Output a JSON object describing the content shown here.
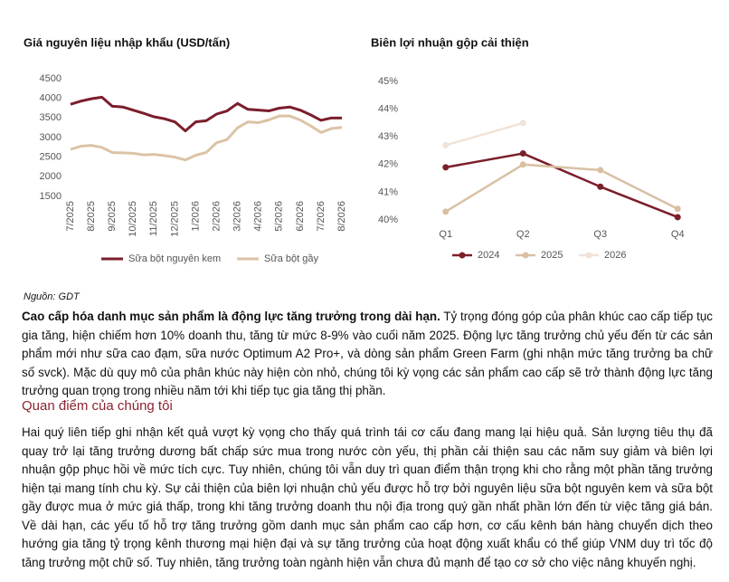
{
  "chart_data": [
    {
      "type": "line",
      "title": "Giá nguyên liệu nhập khẩu (USD/tấn)",
      "categories": [
        "7/2025",
        null,
        "8/2025",
        null,
        "9/2025",
        null,
        "10/2025",
        null,
        "11/2025",
        null,
        "12/2025",
        null,
        "1/2026",
        null,
        "2/2026",
        null,
        "3/2026",
        null,
        "4/2026",
        null,
        "5/2026",
        null,
        "6/2026",
        null,
        "7/2026",
        null,
        "8/2026"
      ],
      "series": [
        {
          "name": "Sữa bột nguyên kem",
          "color": "#7b1e2b",
          "values": [
            3850,
            3930,
            3990,
            4030,
            3800,
            3780,
            3700,
            3620,
            3530,
            3480,
            3400,
            3170,
            3400,
            3430,
            3600,
            3680,
            3870,
            3720,
            3700,
            3680,
            3750,
            3780,
            3700,
            3580,
            3440,
            3500,
            3500
          ]
        },
        {
          "name": "Sữa bột gầy",
          "color": "#dcc3a6",
          "values": [
            2700,
            2780,
            2800,
            2750,
            2620,
            2610,
            2600,
            2560,
            2570,
            2540,
            2500,
            2430,
            2550,
            2620,
            2870,
            2950,
            3250,
            3400,
            3380,
            3450,
            3550,
            3550,
            3450,
            3300,
            3130,
            3230,
            3260
          ]
        }
      ],
      "ylim": [
        1500,
        4500
      ],
      "yticks": [
        1500,
        2000,
        2500,
        3000,
        3500,
        4000,
        4500
      ],
      "grid": false,
      "markers": false
    },
    {
      "type": "line",
      "title": "Biên lợi nhuận gộp cải thiện",
      "categories": [
        "Q1",
        "Q2",
        "Q3",
        "Q4"
      ],
      "series": [
        {
          "name": "2024",
          "color": "#7b1e2b",
          "values": [
            41.9,
            42.4,
            41.2,
            40.1
          ]
        },
        {
          "name": "2025",
          "color": "#d9c0a3",
          "values": [
            40.3,
            42.0,
            41.8,
            40.4
          ]
        },
        {
          "name": "2026",
          "color": "#f1e3d8",
          "values": [
            42.7,
            43.5,
            null,
            null
          ]
        }
      ],
      "ylim": [
        40,
        45
      ],
      "yticks": [
        {
          "value": 40,
          "label": "40%"
        },
        {
          "value": 41,
          "label": "41%"
        },
        {
          "value": 42,
          "label": "42%"
        },
        {
          "value": 43,
          "label": "43%"
        },
        {
          "value": 44,
          "label": "44%"
        },
        {
          "value": 45,
          "label": "45%"
        }
      ],
      "grid": false,
      "markers": true
    }
  ],
  "source": "Nguồn: GDT",
  "paragraph1": {
    "lead": "Cao cấp hóa danh mục sản phẩm là động lực tăng trưởng trong dài hạn.",
    "body": " Tỷ trọng đóng góp của phân khúc cao cấp tiếp tục gia tăng, hiện chiếm hơn 10% doanh thu, tăng từ mức 8-9% vào cuối năm 2025. Động lực tăng trưởng chủ yếu đến từ các sản phẩm mới như sữa cao đạm, sữa nước Optimum A2 Pro+, và dòng sản phẩm Green Farm (ghi nhận mức tăng trưởng ba chữ số svck). Mặc dù quy mô của phân khúc này hiện còn nhỏ, chúng tôi kỳ vọng các sản phẩm cao cấp sẽ trở thành động lực tăng trưởng quan trọng trong nhiều năm tới khi tiếp tục gia tăng thị phần."
  },
  "section_title": "Quan điểm của chúng tôi",
  "paragraph2": "Hai quý liên tiếp ghi nhận kết quả vượt kỳ vọng cho thấy quá trình tái cơ cấu đang mang lại hiệu quả. Sản lượng tiêu thụ đã quay trở lại tăng trưởng dương bất chấp sức mua trong nước còn yếu, thị phần cải thiện sau các năm suy giảm và biên lợi nhuận gộp phục hồi về mức tích cực. Tuy nhiên, chúng tôi vẫn duy trì quan điểm thận trọng khi cho rằng một phần tăng trưởng hiện tại mang tính chu kỳ. Sự cải thiện của biên lợi nhuận chủ yếu được hỗ trợ bởi nguyên liệu sữa bột nguyên kem và sữa bột gầy được mua ở mức giá thấp, trong khi tăng trưởng doanh thu nội địa trong quý gần nhất phần lớn đến từ việc tăng giá bán. Về dài hạn, các yếu tố hỗ trợ tăng trưởng gồm danh mục sản phẩm cao cấp hơn, cơ cấu kênh bán hàng chuyển dịch theo hướng gia tăng tỷ trọng kênh thương mại hiện đại và sự tăng trưởng của hoạt động xuất khẩu có thể giúp VNM duy trì tốc độ tăng trưởng một chữ số. Tuy nhiên, tăng trưởng toàn ngành hiện vẫn chưa đủ mạnh để tạo cơ sở cho việc nâng khuyến nghị."
}
